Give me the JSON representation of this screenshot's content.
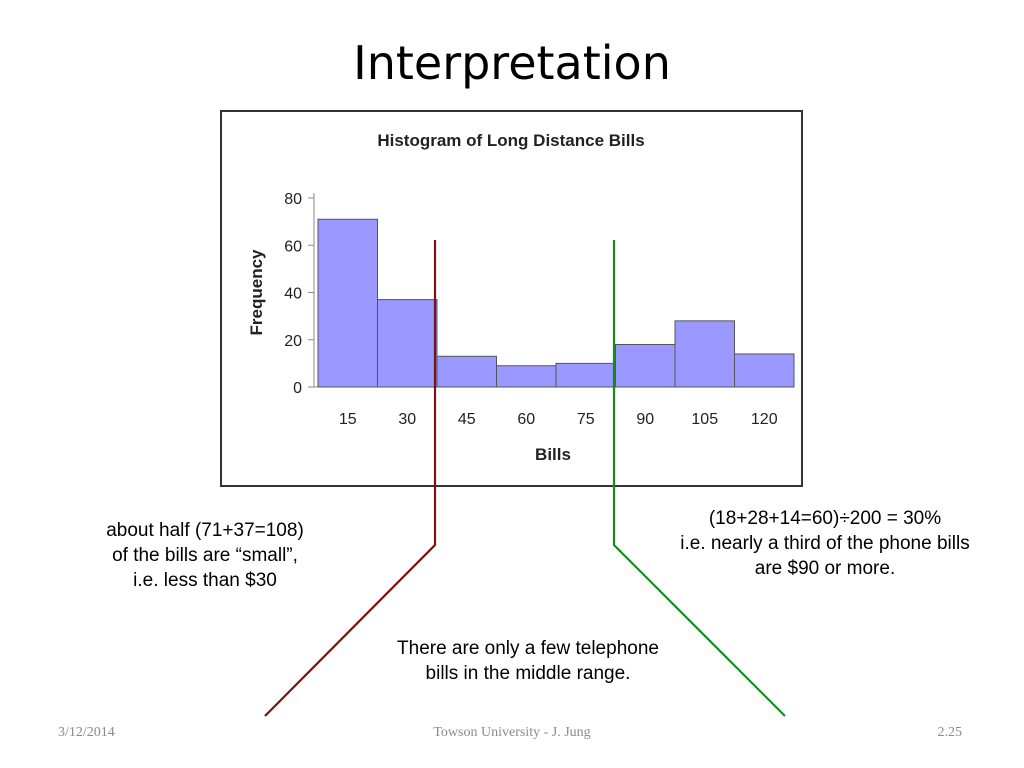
{
  "slide": {
    "title": "Interpretation"
  },
  "chart_data": {
    "type": "bar",
    "title": "Histogram of Long Distance Bills",
    "xlabel": "Bills",
    "ylabel": "Frequency",
    "categories": [
      "15",
      "30",
      "45",
      "60",
      "75",
      "90",
      "105",
      "120"
    ],
    "values": [
      71,
      37,
      13,
      9,
      10,
      18,
      28,
      14
    ],
    "ylim": [
      0,
      80
    ],
    "yticks": [
      0,
      20,
      40,
      60,
      80
    ],
    "grid": false,
    "bar_color": "#9999ff",
    "bar_edge_color": "#555555"
  },
  "annotations": {
    "left_text": [
      "about half (71+37=108)",
      "of the bills are “small”,",
      "i.e. less than $30"
    ],
    "right_text": [
      "(18+28+14=60)÷200 = 30%",
      "i.e. nearly a third of the phone bills",
      "are $90 or more."
    ],
    "middle_text": [
      "There are only a few telephone",
      "bills in the middle range."
    ],
    "left_line_color": "#7b1010",
    "right_line_color": "#1a8a1a"
  },
  "footer": {
    "date": "3/12/2014",
    "center": "Towson University - J. Jung",
    "page": "2.25"
  }
}
